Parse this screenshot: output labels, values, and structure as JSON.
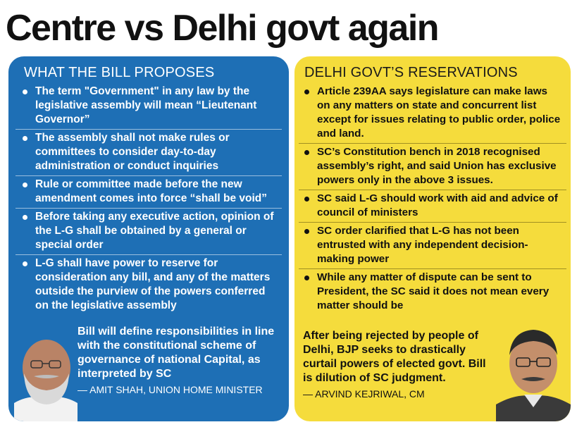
{
  "headline": "Centre vs Delhi govt again",
  "left_panel": {
    "title": "WHAT THE BILL PROPOSES",
    "items": [
      "The term \"Government\"  in any law by the legislative assembly will mean “Lieutenant Governor”",
      "The assembly shall not make rules or committees to consider day-to-day administration or conduct inquiries",
      "Rule or committee made before the new amendment comes into force “shall be void”",
      "Before taking any executive action, opinion of the L-G shall be obtained by a general or special order",
      "L-G shall have power to reserve for consideration any bill, and any of the matters outside the purview of the powers conferred on the legislative assembly"
    ],
    "quote": "Bill will define responsibilities in line with the constitutional scheme of governance of national Capital, as interpreted by SC",
    "attribution": "— AMIT SHAH, UNION HOME MINISTER"
  },
  "right_panel": {
    "title": "DELHI GOVT’S RESERVATIONS",
    "items": [
      "Article 239AA says legislature can make laws on any matters on state and concurrent list except for issues relating to public order, police and land.",
      "SC’s Constitution bench in 2018 recognised assembly’s right, and said Union has exclusive powers only in the above 3 issues.",
      "SC said L-G should work with aid and advice of council of ministers",
      "SC order clarified that L-G has not been entrusted with any independent decision-making power",
      "While any matter of dispute can be sent to President, the SC said it does not mean every matter should be"
    ],
    "quote": "After being rejected by people of Delhi, BJP seeks to drastically curtail powers of elected govt. Bill is dilution of SC judgment.",
    "attribution": "— ARVIND KEJRIWAL, CM"
  },
  "colors": {
    "left_panel_bg": "#1e6fb5",
    "right_panel_bg": "#f5dc3c",
    "headline": "#111111"
  }
}
